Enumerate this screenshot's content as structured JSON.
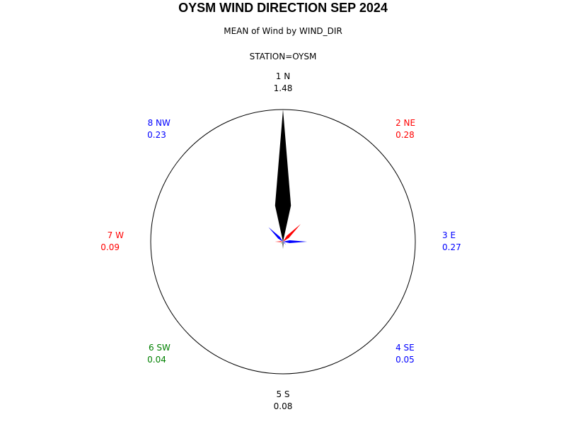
{
  "title": "OYSM WIND DIRECTION SEP 2024",
  "subtitle": "MEAN of Wind by WIND_DIR",
  "subtitle2": "STATION=OYSM",
  "chart_data": {
    "type": "radar",
    "directions": [
      {
        "label": "1 N",
        "value": 1.48,
        "value_text": "1.48",
        "color": "#000000"
      },
      {
        "label": "2 NE",
        "value": 0.28,
        "value_text": "0.28",
        "color": "#ff0000"
      },
      {
        "label": "3 E",
        "value": 0.27,
        "value_text": "0.27",
        "color": "#0000ff"
      },
      {
        "label": "4 SE",
        "value": 0.05,
        "value_text": "0.05",
        "color": "#0000ff"
      },
      {
        "label": "5 S",
        "value": 0.08,
        "value_text": "0.08",
        "color": "#000000"
      },
      {
        "label": "6 SW",
        "value": 0.04,
        "value_text": "0.04",
        "color": "#008000"
      },
      {
        "label": "7 W",
        "value": 0.09,
        "value_text": "0.09",
        "color": "#ff0000"
      },
      {
        "label": "8 NW",
        "value": 0.23,
        "value_text": "0.23",
        "color": "#0000ff"
      }
    ],
    "max_radius_value": 1.48
  }
}
